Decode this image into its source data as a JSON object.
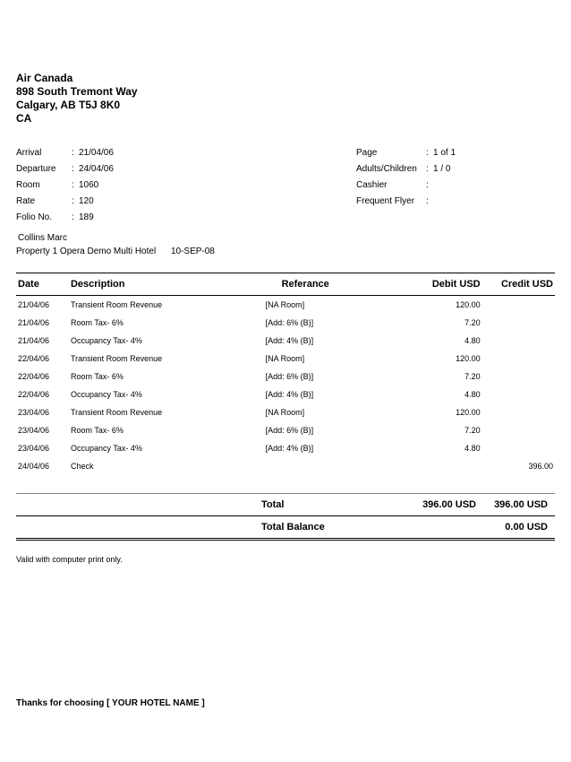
{
  "header": {
    "company": "Air Canada",
    "address1": "898 South Tremont Way",
    "address2": "Calgary, AB T5J 8K0",
    "country": "CA"
  },
  "info_left": [
    {
      "label": "Arrival",
      "value": "21/04/06"
    },
    {
      "label": "Departure",
      "value": "24/04/06"
    },
    {
      "label": "Room",
      "value": "1060"
    },
    {
      "label": "Rate",
      "value": "120"
    },
    {
      "label": "Folio No.",
      "value": "189"
    }
  ],
  "info_right": [
    {
      "label": "Page",
      "value": "1 of 1"
    },
    {
      "label": "Adults/Children",
      "value": "1 / 0"
    },
    {
      "label": "Cashier",
      "value": ""
    },
    {
      "label": "Frequent Flyer",
      "value": ""
    }
  ],
  "guest_name": "Collins Marc",
  "property": "Property 1 Opera Demo Multi Hotel",
  "property_date": "10-SEP-08",
  "columns": {
    "date": "Date",
    "description": "Description",
    "reference": "Referance",
    "debit": "Debit USD",
    "credit": "Credit USD"
  },
  "rows": [
    {
      "date": "21/04/06",
      "desc": "Transient Room Revenue",
      "ref": "[NA Room]",
      "debit": "120.00",
      "credit": ""
    },
    {
      "date": "21/04/06",
      "desc": "Room Tax- 6%",
      "ref": "[Add: 6% (B)]",
      "debit": "7.20",
      "credit": ""
    },
    {
      "date": "21/04/06",
      "desc": "Occupancy Tax- 4%",
      "ref": "[Add: 4% (B)]",
      "debit": "4.80",
      "credit": ""
    },
    {
      "date": "22/04/06",
      "desc": "Transient Room Revenue",
      "ref": "[NA Room]",
      "debit": "120.00",
      "credit": ""
    },
    {
      "date": "22/04/06",
      "desc": "Room Tax- 6%",
      "ref": "[Add: 6% (B)]",
      "debit": "7.20",
      "credit": ""
    },
    {
      "date": "22/04/06",
      "desc": "Occupancy Tax- 4%",
      "ref": "[Add: 4% (B)]",
      "debit": "4.80",
      "credit": ""
    },
    {
      "date": "23/04/06",
      "desc": "Transient Room Revenue",
      "ref": "[NA Room]",
      "debit": "120.00",
      "credit": ""
    },
    {
      "date": "23/04/06",
      "desc": "Room Tax- 6%",
      "ref": "[Add: 6% (B)]",
      "debit": "7.20",
      "credit": ""
    },
    {
      "date": "23/04/06",
      "desc": "Occupancy Tax- 4%",
      "ref": "[Add: 4% (B)]",
      "debit": "4.80",
      "credit": ""
    },
    {
      "date": "24/04/06",
      "desc": "Check",
      "ref": "",
      "debit": "",
      "credit": "396.00"
    }
  ],
  "totals": {
    "total_label": "Total",
    "total_debit": "396.00 USD",
    "total_credit": "396.00 USD",
    "balance_label": "Total Balance",
    "balance_value": "0.00 USD"
  },
  "footnote": "Valid with computer print only.",
  "thanks": "Thanks for choosing  [ YOUR HOTEL NAME ]"
}
